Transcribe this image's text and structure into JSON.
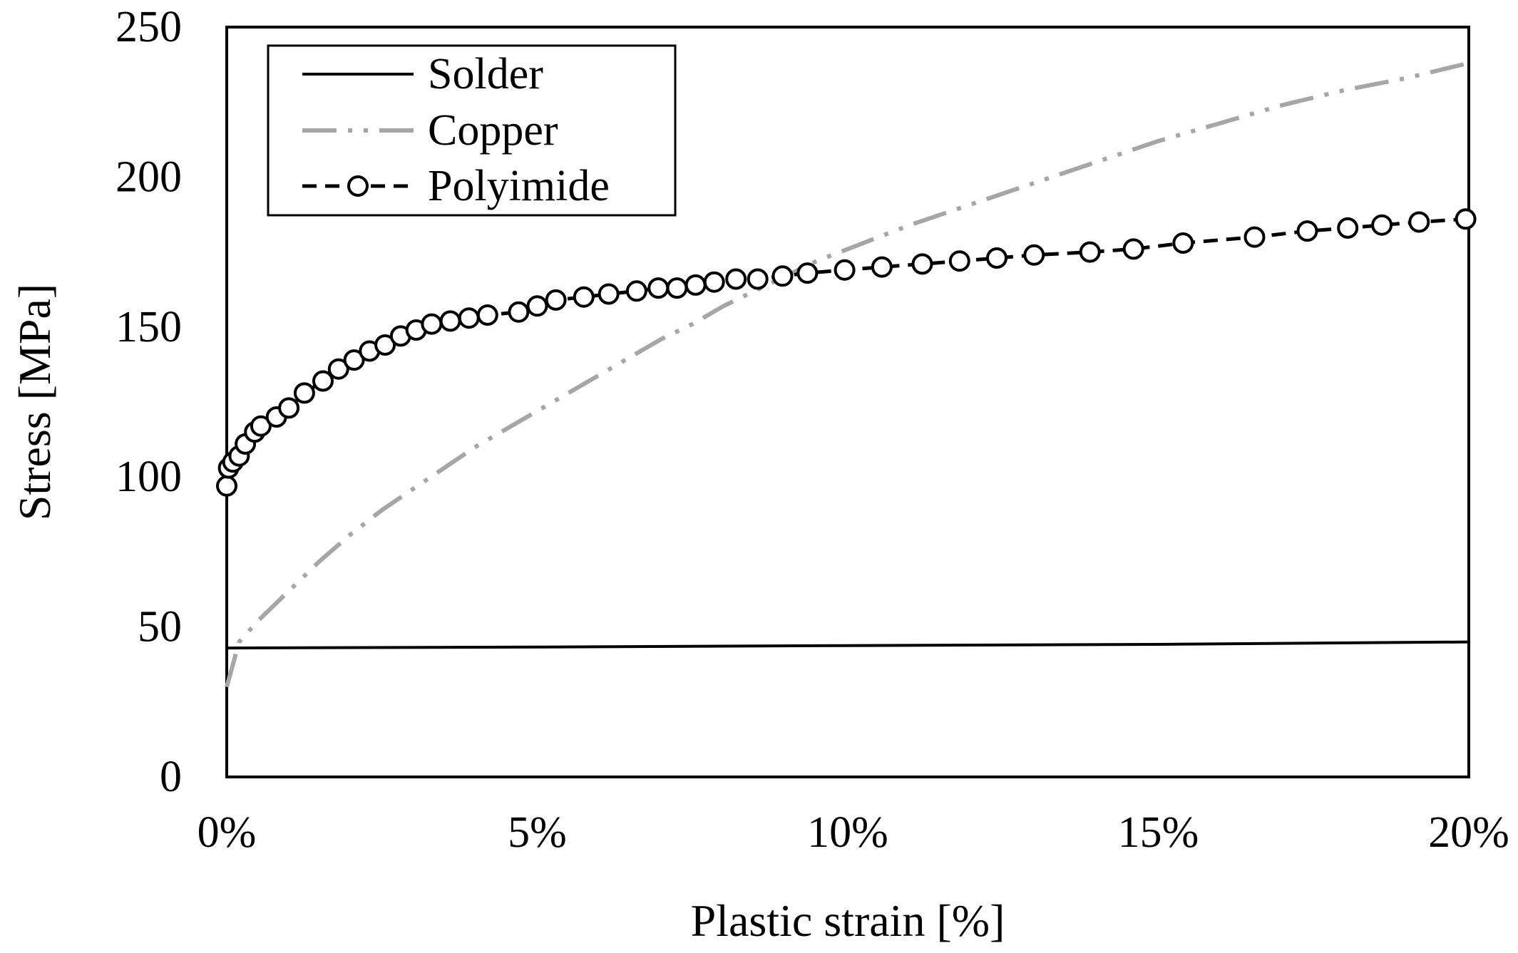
{
  "chart_data": {
    "type": "line",
    "xlabel": "Plastic strain [%]",
    "ylabel": "Stress [MPa]",
    "xlim": [
      0,
      20
    ],
    "ylim": [
      0,
      250
    ],
    "x_ticks": [
      "0%",
      "5%",
      "10%",
      "15%",
      "20%"
    ],
    "x_tick_values": [
      0,
      5,
      10,
      15,
      20
    ],
    "y_ticks": [
      "0",
      "50",
      "100",
      "150",
      "200",
      "250"
    ],
    "y_tick_values": [
      0,
      50,
      100,
      150,
      200,
      250
    ],
    "grid": false,
    "legend_position": "top-left",
    "series": [
      {
        "name": "Solder",
        "color": "#000000",
        "style": "solid",
        "marker": "none",
        "x": [
          0,
          5,
          10,
          15,
          20
        ],
        "y": [
          43,
          43.3,
          43.8,
          44.2,
          45
        ]
      },
      {
        "name": "Copper",
        "color": "#a6a6a6",
        "style": "long-dash-dot-dot",
        "marker": "none",
        "x": [
          0,
          0.2,
          0.5,
          1,
          1.5,
          2,
          2.5,
          3,
          3.5,
          4,
          4.5,
          5,
          5.5,
          6,
          6.5,
          7,
          7.5,
          8,
          8.5,
          9,
          9.5,
          10,
          11,
          12,
          13,
          14,
          15,
          16,
          17,
          18,
          19,
          20
        ],
        "y": [
          30,
          45,
          52,
          62,
          72,
          81,
          89,
          96,
          103,
          110,
          116,
          122,
          128,
          134,
          140,
          146,
          151,
          157,
          162,
          167,
          172,
          176,
          184,
          191,
          198,
          205,
          212,
          218,
          224,
          229,
          233,
          238
        ]
      },
      {
        "name": "Polyimide",
        "color": "#000000",
        "style": "dashed",
        "marker": "open-circle",
        "x": [
          0,
          0.03,
          0.1,
          0.2,
          0.3,
          0.45,
          0.55,
          0.8,
          1.0,
          1.25,
          1.55,
          1.8,
          2.05,
          2.3,
          2.55,
          2.8,
          3.05,
          3.3,
          3.6,
          3.9,
          4.2,
          4.7,
          5.0,
          5.3,
          5.75,
          6.15,
          6.6,
          6.95,
          7.25,
          7.55,
          7.85,
          8.2,
          8.55,
          8.95,
          9.35,
          9.95,
          10.55,
          11.2,
          11.8,
          12.4,
          13.0,
          13.9,
          14.6,
          15.4,
          16.55,
          17.4,
          18.05,
          18.6,
          19.2,
          19.95
        ],
        "y": [
          97,
          103,
          105,
          107,
          111,
          115,
          117,
          120,
          123,
          128,
          132,
          136,
          139,
          142,
          144,
          147,
          149,
          151,
          152,
          153,
          154,
          155,
          157,
          159,
          160,
          161,
          162,
          163,
          163,
          164,
          165,
          166,
          166,
          167,
          168,
          169,
          170,
          171,
          172,
          173,
          174,
          175,
          176,
          178,
          180,
          182,
          183,
          184,
          185,
          186
        ]
      }
    ]
  }
}
